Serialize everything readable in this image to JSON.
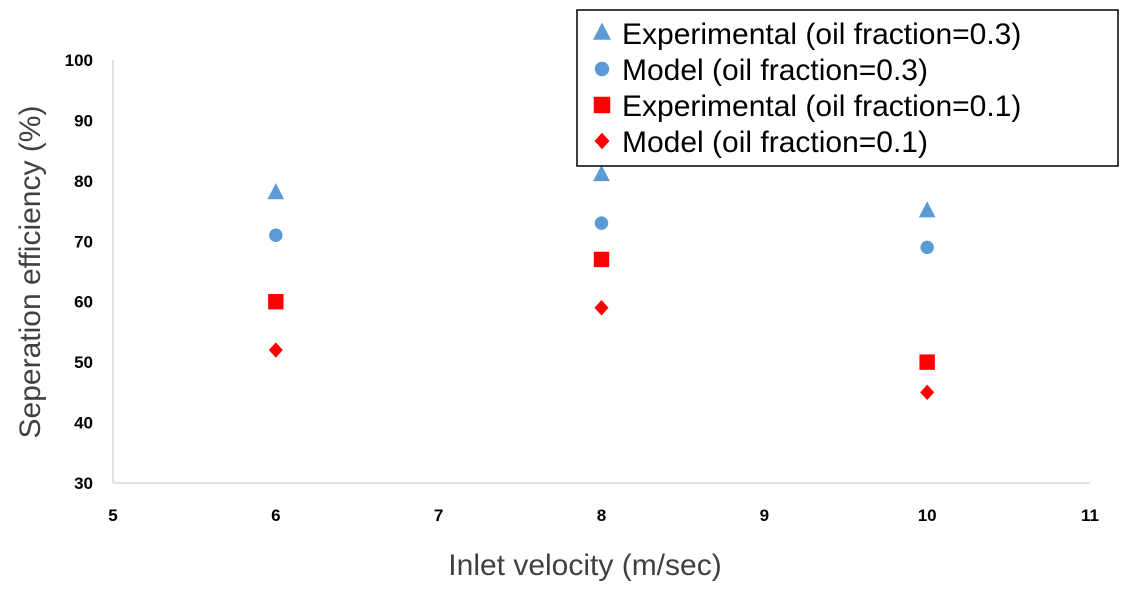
{
  "chart_data": {
    "type": "scatter",
    "title": "",
    "xlabel": "Inlet velocity (m/sec)",
    "ylabel": "Seperation efficiency (%)",
    "xlim": [
      5,
      11
    ],
    "ylim": [
      30,
      100
    ],
    "xticks": [
      5,
      6,
      7,
      8,
      9,
      10,
      11
    ],
    "yticks": [
      30,
      40,
      50,
      60,
      70,
      80,
      90,
      100
    ],
    "grid": false,
    "legend_position": "top-right",
    "series": [
      {
        "name": "Experimental (oil fraction=0.3)",
        "marker": "triangle",
        "color": "#5B9BD5",
        "x": [
          6,
          8,
          10
        ],
        "y": [
          78,
          81,
          75
        ]
      },
      {
        "name": "Model (oil fraction=0.3)",
        "marker": "circle",
        "color": "#5B9BD5",
        "x": [
          6,
          8,
          10
        ],
        "y": [
          71,
          73,
          69
        ]
      },
      {
        "name": "Experimental (oil fraction=0.1)",
        "marker": "square",
        "color": "#FF0000",
        "x": [
          6,
          8,
          10
        ],
        "y": [
          60,
          67,
          50
        ]
      },
      {
        "name": "Model (oil fraction=0.1)",
        "marker": "diamond",
        "color": "#FF0000",
        "x": [
          6,
          8,
          10
        ],
        "y": [
          52,
          59,
          45
        ]
      }
    ]
  }
}
